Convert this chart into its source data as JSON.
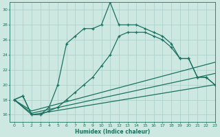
{
  "xlabel": "Humidex (Indice chaleur)",
  "bg_color": "#cce8e0",
  "grid_color": "#aacec8",
  "line_color": "#1a7060",
  "xlim": [
    -0.5,
    23
  ],
  "ylim": [
    15,
    31
  ],
  "xticks": [
    0,
    1,
    2,
    3,
    4,
    5,
    6,
    7,
    8,
    9,
    10,
    11,
    12,
    13,
    14,
    15,
    16,
    17,
    18,
    19,
    20,
    21,
    22,
    23
  ],
  "yticks": [
    16,
    18,
    20,
    22,
    24,
    26,
    28,
    30
  ],
  "line1_x": [
    0,
    1,
    2,
    3,
    4,
    5,
    6,
    7,
    8,
    9,
    10,
    11,
    12,
    13,
    14,
    15,
    16,
    17,
    18,
    19,
    20,
    21,
    22,
    23
  ],
  "line1_y": [
    18,
    18.5,
    16,
    16,
    17,
    20,
    25.5,
    26.5,
    27.5,
    27.5,
    28,
    31,
    28,
    28,
    28,
    27.5,
    27,
    26.5,
    25.5,
    23.5,
    23.5,
    21,
    21,
    20
  ],
  "line2_x": [
    0,
    1,
    2,
    3,
    4,
    5,
    6,
    7,
    8,
    9,
    10,
    11,
    12,
    13,
    14,
    15,
    16,
    17,
    18,
    19,
    20,
    21,
    22,
    23
  ],
  "line2_y": [
    18,
    18.5,
    16,
    16,
    16.5,
    17,
    18,
    19,
    20,
    21,
    22.5,
    24,
    26.5,
    27,
    27,
    27,
    26.5,
    26,
    25,
    23.5,
    23.5,
    21,
    21,
    20
  ],
  "line3_x": [
    0,
    2,
    23
  ],
  "line3_y": [
    18,
    16,
    20
  ],
  "line4_x": [
    0,
    2,
    23
  ],
  "line4_y": [
    18,
    16.2,
    21.5
  ],
  "line5_x": [
    0,
    2,
    23
  ],
  "line5_y": [
    18,
    16.5,
    23
  ]
}
